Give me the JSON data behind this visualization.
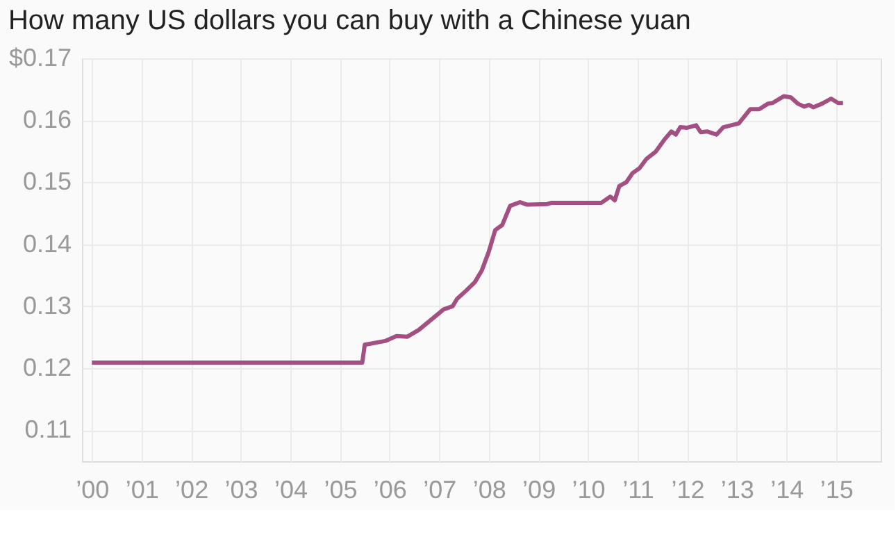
{
  "chart_data": {
    "type": "line",
    "title": "How many US dollars you can buy with a Chinese yuan",
    "x": [
      2000.0,
      2005.45,
      2005.5,
      2005.91,
      2006.14,
      2006.36,
      2006.59,
      2007.09,
      2007.27,
      2007.36,
      2007.54,
      2007.72,
      2007.86,
      2008.0,
      2008.13,
      2008.27,
      2008.43,
      2008.63,
      2008.77,
      2009.18,
      2009.27,
      2010.27,
      2010.45,
      2010.54,
      2010.63,
      2010.77,
      2010.9,
      2011.04,
      2011.18,
      2011.36,
      2011.54,
      2011.68,
      2011.77,
      2011.86,
      2012.0,
      2012.18,
      2012.27,
      2012.41,
      2012.59,
      2012.73,
      2013.04,
      2013.27,
      2013.45,
      2013.63,
      2013.72,
      2013.95,
      2014.09,
      2014.23,
      2014.36,
      2014.45,
      2014.54,
      2014.72,
      2014.9,
      2015.04,
      2015.14
    ],
    "series": [
      {
        "color": "#a34f82",
        "values": [
          0.1209,
          0.1209,
          0.1238,
          0.1244,
          0.1252,
          0.1251,
          0.1262,
          0.1295,
          0.13,
          0.1312,
          0.1325,
          0.1339,
          0.1358,
          0.1388,
          0.1423,
          0.1431,
          0.1462,
          0.1468,
          0.1464,
          0.1465,
          0.1467,
          0.1467,
          0.1477,
          0.1471,
          0.1494,
          0.15,
          0.1515,
          0.1523,
          0.1538,
          0.1549,
          0.1569,
          0.1582,
          0.1577,
          0.1589,
          0.1588,
          0.1592,
          0.1581,
          0.1582,
          0.1577,
          0.1589,
          0.1595,
          0.1618,
          0.1618,
          0.1627,
          0.1628,
          0.1639,
          0.1637,
          0.1627,
          0.1622,
          0.1625,
          0.1621,
          0.1627,
          0.1635,
          0.1628,
          0.1628
        ]
      }
    ],
    "xlim": [
      1999.8,
      2015.9
    ],
    "xticks": [
      {
        "value": 2000,
        "label": "’00"
      },
      {
        "value": 2001,
        "label": "’01"
      },
      {
        "value": 2002,
        "label": "’02"
      },
      {
        "value": 2003,
        "label": "’03"
      },
      {
        "value": 2004,
        "label": "’04"
      },
      {
        "value": 2005,
        "label": "’05"
      },
      {
        "value": 2006,
        "label": "’06"
      },
      {
        "value": 2007,
        "label": "’07"
      },
      {
        "value": 2008,
        "label": "’08"
      },
      {
        "value": 2009,
        "label": "’09"
      },
      {
        "value": 2010,
        "label": "’10"
      },
      {
        "value": 2011,
        "label": "’11"
      },
      {
        "value": 2012,
        "label": "’12"
      },
      {
        "value": 2013,
        "label": "’13"
      },
      {
        "value": 2014,
        "label": "’14"
      },
      {
        "value": 2015,
        "label": "’15"
      }
    ],
    "ylim": [
      0.105,
      0.17
    ],
    "yticks": [
      0.11,
      0.12,
      0.13,
      0.14,
      0.15,
      0.16,
      {
        "value": 0.17,
        "label": "$0.17"
      }
    ],
    "grid": true,
    "line_style": "solid",
    "marker": "none"
  }
}
